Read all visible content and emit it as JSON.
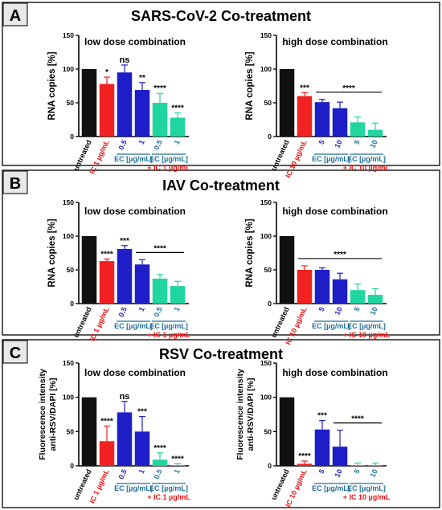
{
  "colors": {
    "black": "#111111",
    "red": "#f22222",
    "blue": "#1e1ec8",
    "green": "#20d6a0",
    "ec_label": "#1f6f9a",
    "ic_label": "#ee1111",
    "panel_letter_bg": "#e8e8e8"
  },
  "panels": [
    {
      "letter": "A",
      "title": "SARS-CoV-2 Co-treatment"
    },
    {
      "letter": "B",
      "title": "IAV Co-treatment"
    },
    {
      "letter": "C",
      "title": "RSV Co-treatment"
    }
  ],
  "chart_data": [
    {
      "type": "bar",
      "panel": "A",
      "title": "low dose combination",
      "ylabel": "RNA copies [%]",
      "ylim": [
        0,
        150
      ],
      "yticks": [
        0,
        50,
        100,
        150
      ],
      "categories": [
        "untreated",
        "IC 1 µg/mL",
        "0.5",
        "1",
        "0.5",
        "1"
      ],
      "values": [
        100,
        78,
        95,
        69,
        50,
        28
      ],
      "errors": [
        0,
        10,
        11,
        11,
        14,
        7
      ],
      "colors": [
        "black",
        "red",
        "blue",
        "blue",
        "green",
        "green"
      ],
      "significance": [
        {
          "label": "*",
          "bars": [
            1
          ]
        },
        {
          "label": "ns",
          "bars": [
            2
          ]
        },
        {
          "label": "**",
          "bars": [
            3
          ]
        },
        {
          "label": "****",
          "bars": [
            4
          ]
        },
        {
          "label": "****",
          "bars": [
            5
          ]
        }
      ],
      "groups": [
        {
          "label": "EC [µg/mL]",
          "bars": [
            2,
            3
          ],
          "color": "ec_label"
        },
        {
          "label": "EC [µg/mL]",
          "bars": [
            4,
            5
          ],
          "color": "ec_label"
        },
        {
          "label": "+ IC 1 µg/mL",
          "bars": [
            4,
            5
          ],
          "color": "ic_label",
          "row": 2
        }
      ]
    },
    {
      "type": "bar",
      "panel": "A",
      "title": "high dose combination",
      "ylabel": "RNA copies [%]",
      "ylim": [
        0,
        150
      ],
      "yticks": [
        0,
        50,
        100,
        150
      ],
      "categories": [
        "untreated",
        "IC 10 µg/mL",
        "5",
        "10",
        "5",
        "10"
      ],
      "values": [
        100,
        60,
        51,
        42,
        21,
        10
      ],
      "errors": [
        0,
        5,
        4,
        9,
        8,
        10
      ],
      "colors": [
        "black",
        "red",
        "blue",
        "blue",
        "green",
        "green"
      ],
      "significance": [
        {
          "label": "***",
          "bars": [
            1
          ]
        },
        {
          "label": "****",
          "bars": [
            2,
            5
          ]
        }
      ],
      "groups": [
        {
          "label": "EC [µg/mL]",
          "bars": [
            2,
            3
          ],
          "color": "ec_label"
        },
        {
          "label": "EC [µg/mL]",
          "bars": [
            4,
            5
          ],
          "color": "ec_label"
        },
        {
          "label": "+ IC 10 µg/mL",
          "bars": [
            4,
            5
          ],
          "color": "ic_label",
          "row": 2
        }
      ]
    },
    {
      "type": "bar",
      "panel": "B",
      "title": "low dose combination",
      "ylabel": "RNA copies [%]",
      "ylim": [
        0,
        150
      ],
      "yticks": [
        0,
        50,
        100,
        150
      ],
      "categories": [
        "untreated",
        "IC 1 µg/mL",
        "0.5",
        "1",
        "0.5",
        "1"
      ],
      "values": [
        100,
        63,
        81,
        58,
        37,
        26
      ],
      "errors": [
        0,
        3,
        5,
        7,
        6,
        7
      ],
      "colors": [
        "black",
        "red",
        "blue",
        "blue",
        "green",
        "green"
      ],
      "significance": [
        {
          "label": "****",
          "bars": [
            1
          ]
        },
        {
          "label": "***",
          "bars": [
            2
          ]
        },
        {
          "label": "****",
          "bars": [
            3,
            5
          ]
        }
      ],
      "groups": [
        {
          "label": "EC [µg/mL]",
          "bars": [
            2,
            3
          ],
          "color": "ec_label"
        },
        {
          "label": "EC [µg/mL]",
          "bars": [
            4,
            5
          ],
          "color": "ec_label"
        },
        {
          "label": "+ IC 1 µg/mL",
          "bars": [
            4,
            5
          ],
          "color": "ic_label",
          "row": 2
        }
      ]
    },
    {
      "type": "bar",
      "panel": "B",
      "title": "high dose combination",
      "ylabel": "RNA copies [%]",
      "ylim": [
        0,
        150
      ],
      "yticks": [
        0,
        50,
        100,
        150
      ],
      "categories": [
        "untreated",
        "IC 10 µg/mL",
        "5",
        "10",
        "5",
        "10"
      ],
      "values": [
        100,
        50,
        50,
        36,
        20,
        13
      ],
      "errors": [
        0,
        6,
        3,
        9,
        9,
        9
      ],
      "colors": [
        "black",
        "red",
        "blue",
        "blue",
        "green",
        "green"
      ],
      "significance": [
        {
          "label": "****",
          "bars": [
            1,
            5
          ]
        }
      ],
      "groups": [
        {
          "label": "EC [µg/mL]",
          "bars": [
            2,
            3
          ],
          "color": "ec_label"
        },
        {
          "label": "EC [µg/mL]",
          "bars": [
            4,
            5
          ],
          "color": "ec_label"
        },
        {
          "label": "+ IC 10 µg/mL",
          "bars": [
            4,
            5
          ],
          "color": "ic_label",
          "row": 2
        }
      ]
    },
    {
      "type": "bar",
      "panel": "C",
      "title": "low dose combination",
      "ylabel": "Fluorescence intensity anti-RSV/DAPI [%]",
      "ylabel_lines": [
        "Fluorescence intensity",
        "anti-RSV/DAPI [%]"
      ],
      "ylim": [
        0,
        150
      ],
      "yticks": [
        0,
        50,
        100,
        150
      ],
      "categories": [
        "untreated",
        "IC 1 µg/mL",
        "0.5",
        "1",
        "0.5",
        "1"
      ],
      "values": [
        100,
        36,
        78,
        50,
        9,
        1
      ],
      "errors": [
        0,
        22,
        16,
        22,
        10,
        2
      ],
      "colors": [
        "black",
        "red",
        "blue",
        "blue",
        "green",
        "green"
      ],
      "significance": [
        {
          "label": "****",
          "bars": [
            1
          ]
        },
        {
          "label": "ns",
          "bars": [
            2
          ]
        },
        {
          "label": "***",
          "bars": [
            3
          ]
        },
        {
          "label": "****",
          "bars": [
            4
          ]
        },
        {
          "label": "****",
          "bars": [
            5
          ]
        }
      ],
      "groups": [
        {
          "label": "EC [µg/mL]",
          "bars": [
            2,
            3
          ],
          "color": "ec_label"
        },
        {
          "label": "EC [µg/mL]",
          "bars": [
            4,
            5
          ],
          "color": "ec_label"
        },
        {
          "label": "+ IC 1 µg/mL",
          "bars": [
            4,
            5
          ],
          "color": "ic_label",
          "row": 2
        }
      ]
    },
    {
      "type": "bar",
      "panel": "C",
      "title": "high dose combination",
      "ylabel": "Fluorescence intensity anti-RSV/DAPI [%]",
      "ylabel_lines": [
        "Fluorescence intensity",
        "anti-RSV/DAPI [%]"
      ],
      "ylim": [
        0,
        150
      ],
      "yticks": [
        0,
        50,
        100,
        150
      ],
      "categories": [
        "untreated",
        "IC 10 µg/mL",
        "5",
        "10",
        "5",
        "10"
      ],
      "values": [
        100,
        3,
        53,
        28,
        1,
        1
      ],
      "errors": [
        0,
        4,
        13,
        24,
        3,
        3
      ],
      "colors": [
        "black",
        "red",
        "blue",
        "blue",
        "green",
        "green"
      ],
      "significance": [
        {
          "label": "****",
          "bars": [
            1
          ]
        },
        {
          "label": "***",
          "bars": [
            2
          ]
        },
        {
          "label": "****",
          "bars": [
            3,
            5
          ]
        }
      ],
      "groups": [
        {
          "label": "EC [µg/mL]",
          "bars": [
            2,
            3
          ],
          "color": "ec_label"
        },
        {
          "label": "EC [µg/mL]",
          "bars": [
            4,
            5
          ],
          "color": "ec_label"
        },
        {
          "label": "+ IC 10 µg/mL",
          "bars": [
            4,
            5
          ],
          "color": "ic_label",
          "row": 2
        }
      ]
    }
  ]
}
